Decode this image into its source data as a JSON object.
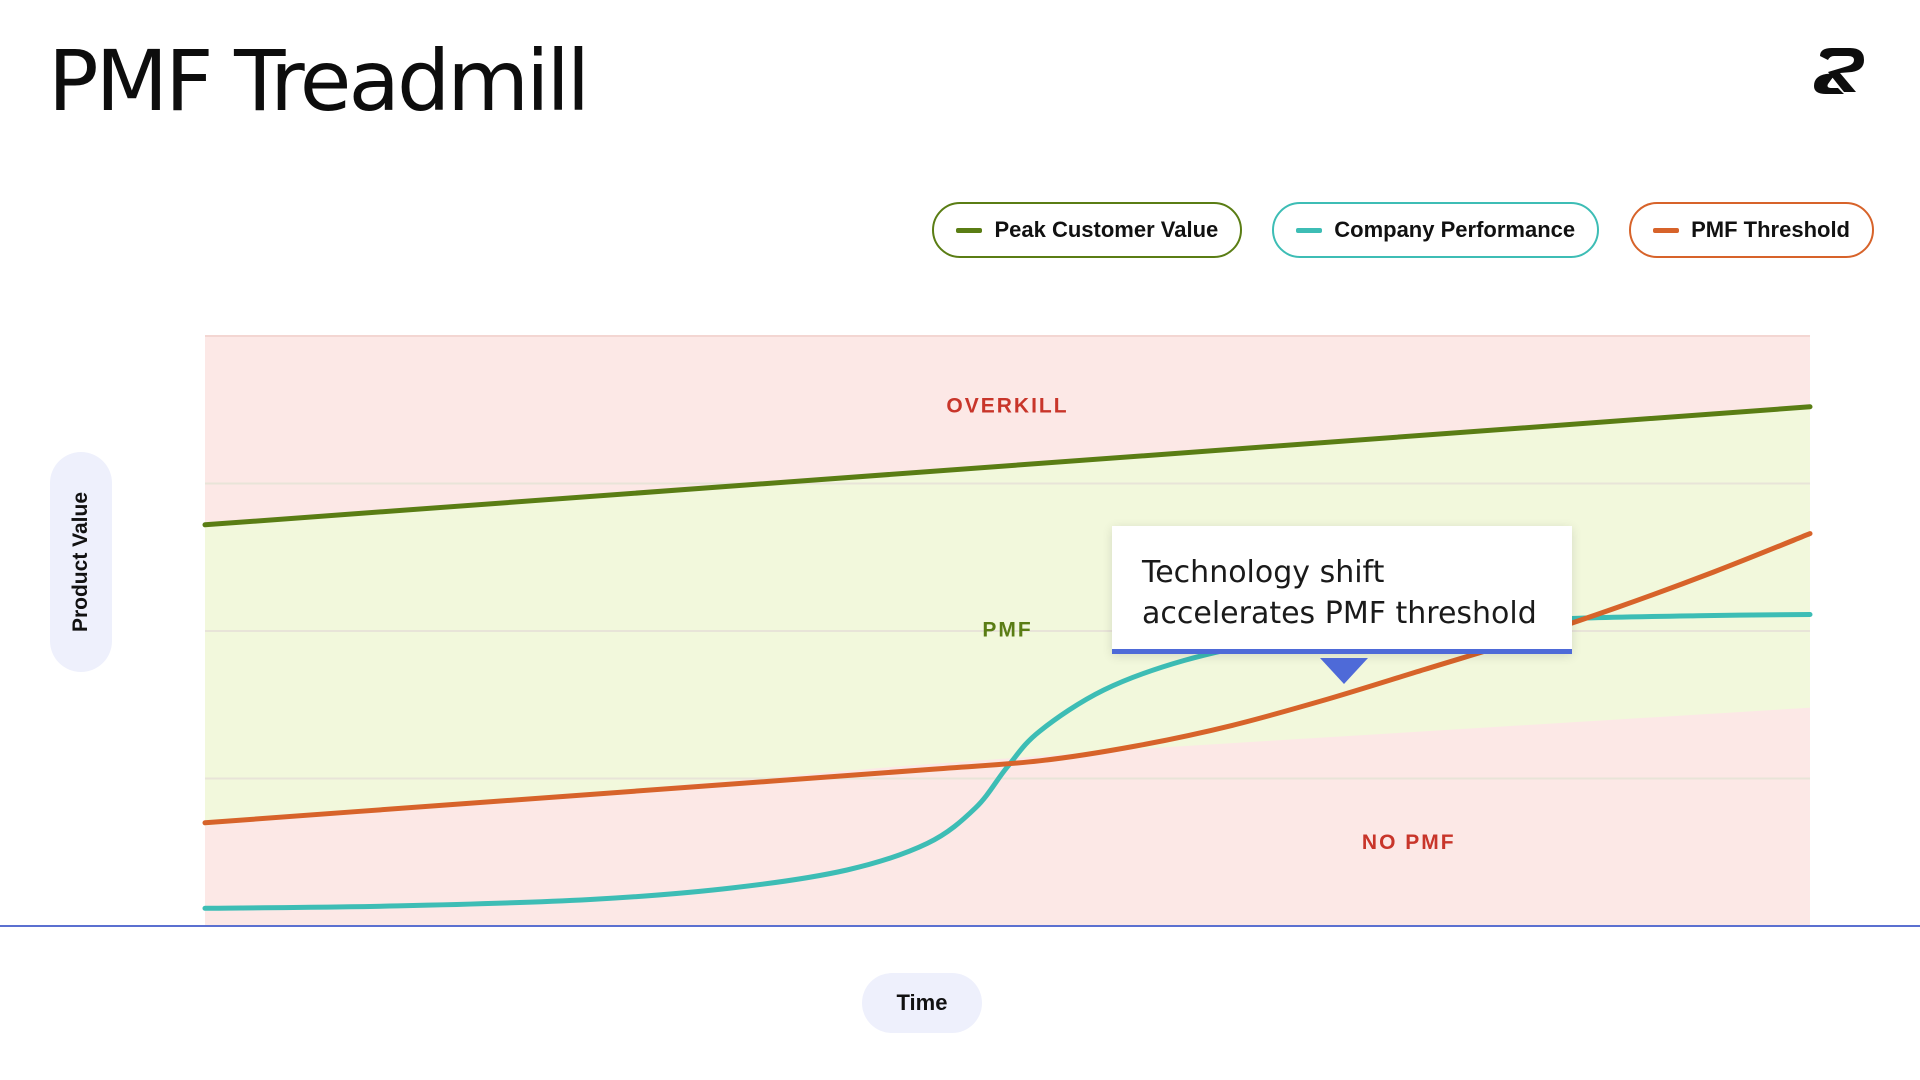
{
  "title": "PMF Treadmill",
  "logo": {
    "icon": "brand-logo-icon",
    "color": "#0d0d0d"
  },
  "legend": [
    {
      "label": "Peak Customer Value",
      "color": "#5a7d14"
    },
    {
      "label": "Company Performance",
      "color": "#3dbdb5"
    },
    {
      "label": "PMF Threshold",
      "color": "#d7632a"
    }
  ],
  "callout": {
    "text_line1": "Technology shift",
    "text_line2": "accelerates PMF threshold",
    "accent_color": "#4e6ad8"
  },
  "chart_data": {
    "type": "line",
    "title": "",
    "xlabel": "Time",
    "ylabel": "Product Value",
    "xlim": [
      0,
      100
    ],
    "ylim": [
      0,
      100
    ],
    "grid": true,
    "legend_position": "top-right",
    "zone_labels": [
      {
        "text": "OVERKILL",
        "x": 50,
        "y": 88,
        "color": "#c8352a"
      },
      {
        "text": "PMF",
        "x": 50,
        "y": 50,
        "color": "#5a7d14"
      },
      {
        "text": "NO PMF",
        "x": 75,
        "y": 14,
        "color": "#c8352a"
      }
    ],
    "zones": {
      "overkill_color": "#fce8e6",
      "pmf_color": "#f2f8dc",
      "no_pmf_color": "#fce8e6",
      "pmf_lower_bound": [
        {
          "x": 0,
          "y": 17
        },
        {
          "x": 43,
          "y": 27
        },
        {
          "x": 58,
          "y": 30
        },
        {
          "x": 100,
          "y": 37
        }
      ]
    },
    "series": [
      {
        "name": "Peak Customer Value",
        "color": "#5a7d14",
        "points": [
          {
            "x": 0,
            "y": 68
          },
          {
            "x": 100,
            "y": 88
          }
        ]
      },
      {
        "name": "Company Performance",
        "color": "#3dbdb5",
        "points": [
          {
            "x": 0,
            "y": 3
          },
          {
            "x": 12,
            "y": 3.4
          },
          {
            "x": 24,
            "y": 4.5
          },
          {
            "x": 33,
            "y": 6.5
          },
          {
            "x": 40,
            "y": 9.5
          },
          {
            "x": 45,
            "y": 14
          },
          {
            "x": 48,
            "y": 20
          },
          {
            "x": 50,
            "y": 27
          },
          {
            "x": 52,
            "y": 33
          },
          {
            "x": 56,
            "y": 40
          },
          {
            "x": 61,
            "y": 45
          },
          {
            "x": 67,
            "y": 48.5
          },
          {
            "x": 74,
            "y": 50.5
          },
          {
            "x": 80,
            "y": 51.5
          },
          {
            "x": 86,
            "y": 52.2
          },
          {
            "x": 93,
            "y": 52.6
          },
          {
            "x": 100,
            "y": 52.8
          }
        ]
      },
      {
        "name": "PMF Threshold",
        "color": "#d7632a",
        "points": [
          {
            "x": 0,
            "y": 17.5
          },
          {
            "x": 15,
            "y": 20.5
          },
          {
            "x": 30,
            "y": 23.5
          },
          {
            "x": 45,
            "y": 26.5
          },
          {
            "x": 52,
            "y": 28
          },
          {
            "x": 58,
            "y": 30.5
          },
          {
            "x": 64,
            "y": 34
          },
          {
            "x": 70,
            "y": 38.5
          },
          {
            "x": 76,
            "y": 43.5
          },
          {
            "x": 82,
            "y": 48.5
          },
          {
            "x": 88,
            "y": 54
          },
          {
            "x": 94,
            "y": 60
          },
          {
            "x": 100,
            "y": 66.5
          }
        ]
      }
    ],
    "callout_anchor": {
      "x": 70,
      "y": 38.5
    }
  }
}
